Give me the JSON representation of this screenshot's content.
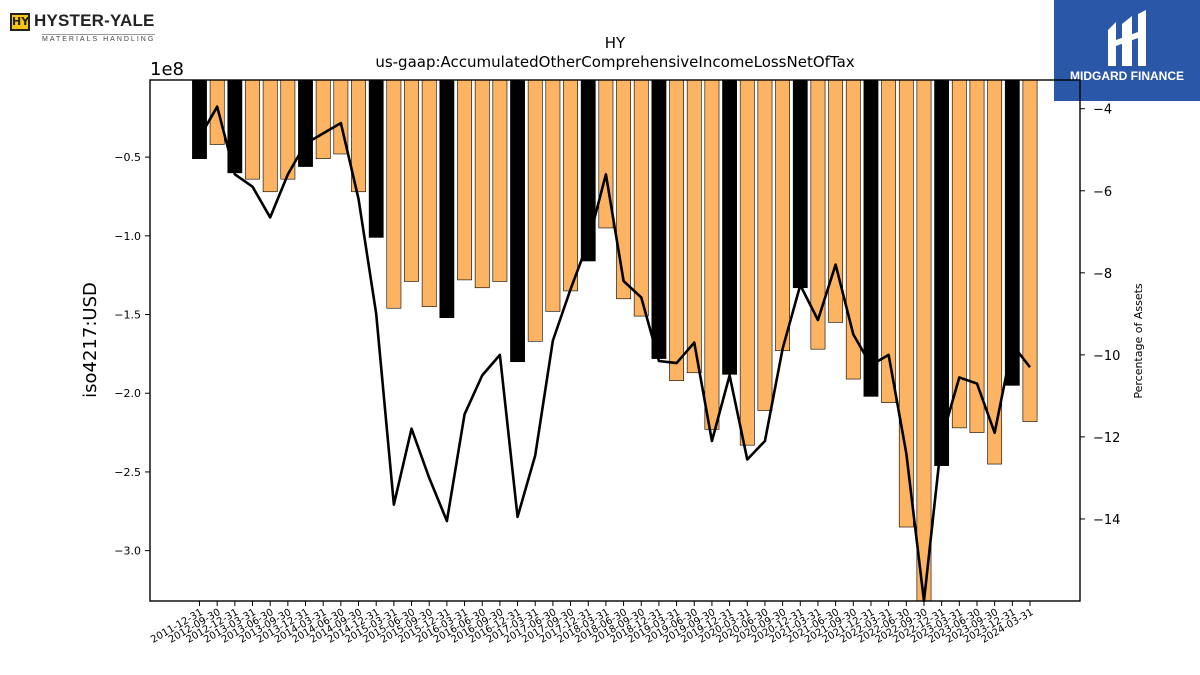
{
  "logos": {
    "left_mark": "HY",
    "left_name": "HYSTER-YALE",
    "left_sub": "MATERIALS HANDLING",
    "right_name": "MIDGARD FINANCE"
  },
  "colors": {
    "bar_orange": "#fdb462",
    "bar_black": "#000000",
    "line": "#000000",
    "brand_blue": "#2b57a8"
  },
  "chart_data": {
    "type": "bar",
    "title": "HY",
    "subtitle": "us-gaap:AccumulatedOtherComprehensiveIncomeLossNetOfTax",
    "ylabel": "iso4217:USD",
    "y_offset_label": "1e8",
    "y2label": "Percentage of Assets",
    "ylim": [
      -3.32,
      -0.01
    ],
    "y2lim": [
      -16.0,
      -3.3
    ],
    "yticks": [
      -0.5,
      -1.0,
      -1.5,
      -2.0,
      -2.5,
      -3.0
    ],
    "ytick_labels": [
      "−0.5",
      "−1.0",
      "−1.5",
      "−2.0",
      "−2.5",
      "−3.0"
    ],
    "y2ticks": [
      -4,
      -6,
      -8,
      -10,
      -12,
      -14
    ],
    "y2tick_labels": [
      "−4",
      "−6",
      "−8",
      "−10",
      "−12",
      "−14"
    ],
    "categories": [
      "2011-12-31",
      "2012-09-30",
      "2012-12-31",
      "2013-03-31",
      "2013-06-30",
      "2013-09-30",
      "2013-12-31",
      "2014-03-31",
      "2014-06-30",
      "2014-09-30",
      "2014-12-31",
      "2015-03-31",
      "2015-06-30",
      "2015-09-30",
      "2015-12-31",
      "2016-03-31",
      "2016-06-30",
      "2016-09-30",
      "2016-12-31",
      "2017-03-31",
      "2017-06-30",
      "2017-09-30",
      "2017-12-31",
      "2018-03-31",
      "2018-06-30",
      "2018-09-30",
      "2018-12-31",
      "2019-03-31",
      "2019-06-30",
      "2019-09-30",
      "2019-12-31",
      "2020-03-31",
      "2020-06-30",
      "2020-09-30",
      "2020-12-31",
      "2021-03-31",
      "2021-06-30",
      "2021-09-30",
      "2021-12-31",
      "2022-03-31",
      "2022-06-30",
      "2022-09-30",
      "2022-12-31",
      "2023-03-31",
      "2023-06-30",
      "2023-09-30",
      "2023-12-31",
      "2024-03-31"
    ],
    "tick_labels": [
      "2011-12-31",
      "2012-09-30",
      "2012-12-31",
      "2013-03-31",
      "2013-06-30",
      "2013-09-30",
      "2013-12-31",
      "2014-03-31",
      "2014-06-30",
      "2014-09-30",
      "2014-12-31",
      "2015-03-31",
      "2015-06-30",
      "2015-09-30",
      "2015-12-31",
      "2016-03-31",
      "2016-06-30",
      "2016-09-30",
      "2016-12-31",
      "2017-03-31",
      "2017-06-30",
      "2017-09-30",
      "2017-12-31",
      "2018-03-31",
      "2018-06-30",
      "2018-09-30",
      "2018-12-31",
      "2019-03-31",
      "2019-06-30",
      "2019-09-30",
      "2019-12-31",
      "2020-03-31",
      "2020-06-30",
      "2020-09-30",
      "2020-12-31",
      "2021-03-31",
      "2021-06-30",
      "2021-09-30",
      "2021-12-31",
      "2022-03-31",
      "2022-06-30",
      "2022-09-30",
      "2022-12-31",
      "2023-03-31",
      "2023-06-30",
      "2023-09-30",
      "2023-12-31",
      "2024-03-31"
    ],
    "series": [
      {
        "values": [
          -0.51,
          -0.42,
          -0.6,
          -0.64,
          -0.72,
          -0.64,
          -0.56,
          -0.51,
          -0.48,
          -0.72,
          -1.01,
          -1.46,
          -1.29,
          -1.45,
          -1.52,
          -1.28,
          -1.33,
          -1.29,
          -1.8,
          -1.67,
          -1.48,
          -1.35,
          -1.16,
          -0.95,
          -1.4,
          -1.51,
          -1.78,
          -1.92,
          -1.87,
          -2.23,
          -1.88,
          -2.33,
          -2.11,
          -1.73,
          -1.33,
          -1.72,
          -1.55,
          -1.91,
          -2.02,
          -2.06,
          -2.85,
          -3.32,
          -2.46,
          -2.22,
          -2.25,
          -2.45,
          -1.95,
          -2.18
        ],
        "year_end": [
          true,
          false,
          true,
          false,
          false,
          false,
          true,
          false,
          false,
          false,
          true,
          false,
          false,
          false,
          true,
          false,
          false,
          false,
          true,
          false,
          false,
          false,
          true,
          false,
          false,
          false,
          true,
          false,
          false,
          false,
          true,
          false,
          false,
          false,
          true,
          false,
          false,
          false,
          true,
          false,
          false,
          false,
          true,
          false,
          false,
          false,
          true,
          false
        ]
      },
      {
        "name": "Percentage of Assets",
        "values": [
          -4.7,
          -3.95,
          -5.6,
          -5.9,
          -6.65,
          -5.6,
          -4.85,
          -4.6,
          -4.35,
          -6.2,
          -9.0,
          -13.65,
          -11.8,
          -13.0,
          -14.05,
          -11.45,
          -10.5,
          -10.0,
          -13.95,
          -12.45,
          -9.65,
          -8.4,
          -7.25,
          -5.6,
          -8.2,
          -8.6,
          -10.15,
          -10.2,
          -9.7,
          -12.1,
          -10.5,
          -12.55,
          -12.1,
          -9.85,
          -8.3,
          -9.15,
          -7.8,
          -9.5,
          -10.25,
          -10.0,
          -12.4,
          -16.0,
          -12.05,
          -10.55,
          -10.7,
          -11.9,
          -9.75,
          -10.3
        ]
      }
    ],
    "grid": false,
    "legend": "none"
  }
}
